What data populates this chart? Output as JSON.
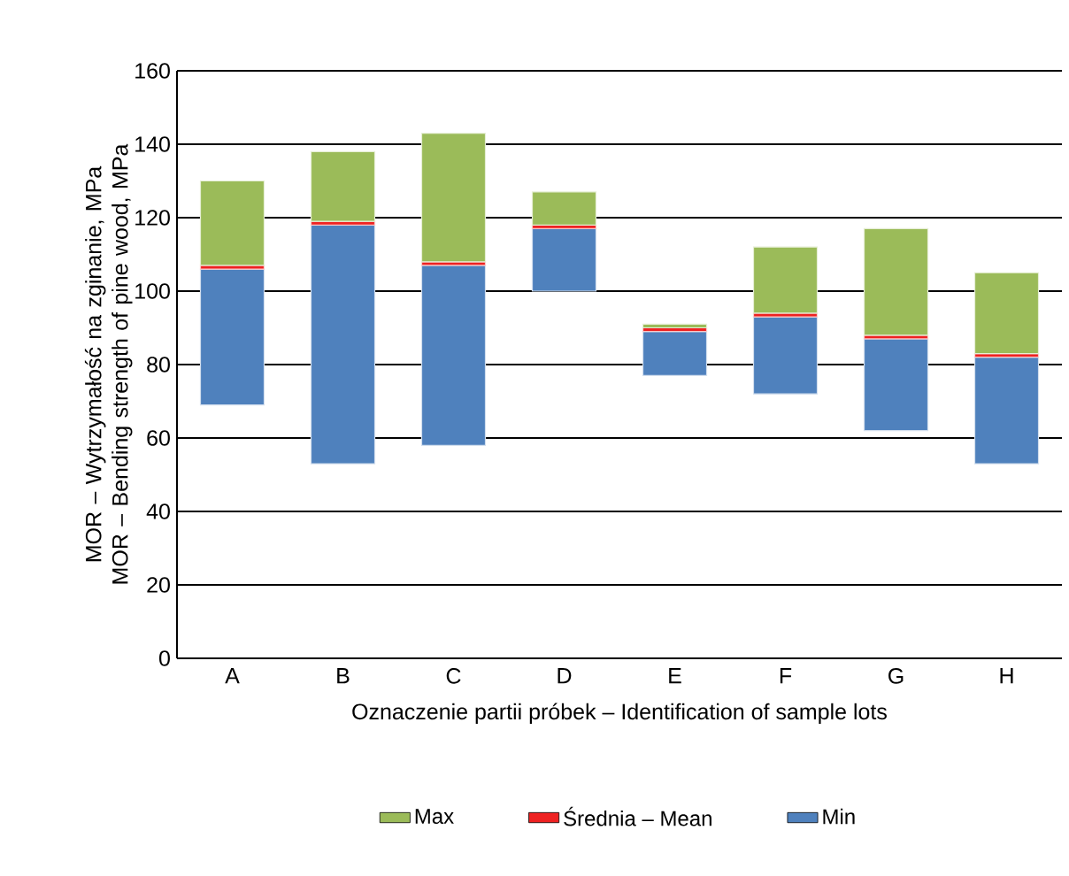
{
  "chart_data": {
    "type": "bar",
    "xlabel": "Oznaczenie partii próbek – Identification of sample lots",
    "ylabel": "MOR – Wytrzymałość na zginanie, MPa MOR – Bending strength of pine wood, MPa",
    "categories": [
      "A",
      "B",
      "C",
      "D",
      "E",
      "F",
      "G",
      "H"
    ],
    "series": [
      {
        "name": "Min",
        "color": "#4f81bd",
        "base": [
          69,
          53,
          58,
          100,
          77,
          72,
          62,
          53
        ],
        "values": [
          37,
          65,
          49,
          17,
          12,
          21,
          25,
          29
        ]
      },
      {
        "name": "Średnia – Mean",
        "color": "#ee2222",
        "base": [
          106,
          118,
          107,
          117,
          89,
          93,
          87,
          82
        ],
        "values": [
          1,
          1,
          1,
          1,
          1,
          1,
          1,
          1
        ]
      },
      {
        "name": "Max",
        "color": "#9bbb59",
        "base": [
          107,
          119,
          108,
          118,
          90,
          94,
          88,
          83
        ],
        "values": [
          23,
          19,
          35,
          9,
          1,
          18,
          29,
          22
        ]
      }
    ],
    "ylim": [
      0,
      160
    ],
    "yticks": [
      0,
      20,
      40,
      60,
      80,
      100,
      120,
      140,
      160
    ],
    "grid": "y",
    "legend": "bottom"
  }
}
